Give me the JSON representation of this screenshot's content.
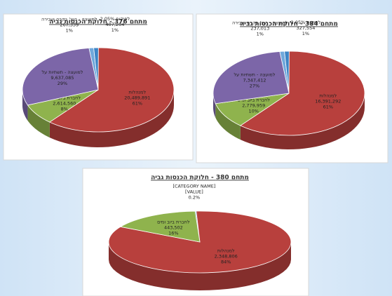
{
  "chart_data": [
    {
      "type": "pie",
      "title": "מתחם 376 - חלוקת הכנסות גביה",
      "categories": [
        "למועצה - הוצ' בקרה ועבירה",
        "לפיקוח 2.05%",
        "למנהלות",
        "לחברת ביוב ומים",
        "למועצה - תשתיות על"
      ],
      "values": [
        1,
        1,
        61,
        8,
        29
      ],
      "value_labels": [
        "1%",
        "1%",
        "61%",
        "8%",
        "29%"
      ],
      "amounts": [
        "267,339",
        "407,204",
        "20,489,891",
        "2,614,560",
        "9,637,085"
      ],
      "colors": [
        "#6fa8dc",
        "#3d85c6",
        "#b8403d",
        "#8fb34d",
        "#7c66a8"
      ]
    },
    {
      "type": "pie",
      "title": "מתחם 384 - חלוקת הכנסות גביה",
      "categories": [
        "למועצה - הוצ' בקרה ועבירה",
        "לפיקוח 2.05%",
        "למנהלות",
        "לחברת ביוב ומים",
        "למועצה - תשתיות על"
      ],
      "values": [
        1,
        1,
        61,
        10,
        27
      ],
      "value_labels": [
        "1%",
        "1%",
        "61%",
        "10%",
        "27%"
      ],
      "amounts": [
        "237,013",
        "327,554",
        "16,391,292",
        "2,779,959",
        "7,347,412"
      ],
      "colors": [
        "#6fa8dc",
        "#3d85c6",
        "#b8403d",
        "#8fb34d",
        "#7c66a8"
      ]
    },
    {
      "type": "pie",
      "title": "מתחם 380 - חלוקת הכנסות גביה",
      "categories": [
        "[CATEGORY NAME]",
        "למנהלות",
        "לחברת ביוב ומים"
      ],
      "values": [
        0.2,
        84,
        16
      ],
      "value_labels": [
        "0.2%",
        "84%",
        "16%"
      ],
      "amounts": [
        "[VALUE]",
        "2,348,806",
        "443,502"
      ],
      "colors": [
        "#6fa8dc",
        "#b8403d",
        "#8fb34d"
      ]
    }
  ]
}
